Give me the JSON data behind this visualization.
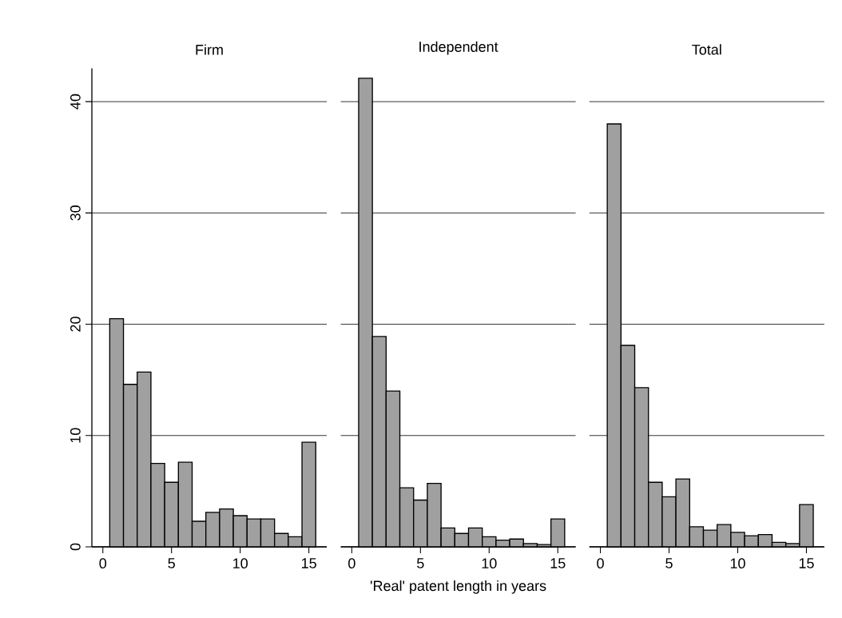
{
  "chart_data": [
    {
      "type": "histogram",
      "title": "Firm",
      "bins": [
        0.5,
        1.5,
        2.5,
        3.5,
        4.5,
        5.5,
        6.5,
        7.5,
        8.5,
        9.5,
        10.5,
        11.5,
        12.5,
        13.5,
        14.5,
        15.5
      ],
      "values": [
        20.5,
        14.6,
        15.7,
        7.5,
        5.8,
        7.6,
        2.3,
        3.1,
        3.4,
        2.8,
        2.5,
        2.5,
        1.2,
        0.9,
        9.4
      ],
      "color": "#a0a0a0",
      "xlim": [
        -0.8,
        16.3
      ],
      "xticks": [
        0,
        5,
        10,
        15
      ],
      "ylim": [
        0,
        43
      ],
      "yticks": [
        0,
        10,
        20,
        30,
        40
      ],
      "grid": "y"
    },
    {
      "type": "histogram",
      "title": "Independent",
      "xlabel": "'Real' patent length in years",
      "bins": [
        0.5,
        1.5,
        2.5,
        3.5,
        4.5,
        5.5,
        6.5,
        7.5,
        8.5,
        9.5,
        10.5,
        11.5,
        12.5,
        13.5,
        14.5,
        15.5
      ],
      "values": [
        42.1,
        18.9,
        14.0,
        5.3,
        4.2,
        5.7,
        1.7,
        1.2,
        1.7,
        0.9,
        0.6,
        0.7,
        0.3,
        0.2,
        2.5
      ],
      "color": "#a0a0a0",
      "xlim": [
        -0.8,
        16.3
      ],
      "xticks": [
        0,
        5,
        10,
        15
      ],
      "yticks": [
        0,
        10,
        20,
        30,
        40
      ],
      "grid": "y",
      "tick_labels": "x"
    },
    {
      "type": "histogram",
      "title": "Total",
      "bins": [
        0.5,
        1.5,
        2.5,
        3.5,
        4.5,
        5.5,
        6.5,
        7.5,
        8.5,
        9.5,
        10.5,
        11.5,
        12.5,
        13.5,
        14.5,
        15.5
      ],
      "values": [
        38.0,
        18.1,
        14.3,
        5.8,
        4.5,
        6.1,
        1.8,
        1.5,
        2.0,
        1.3,
        1.0,
        1.1,
        0.4,
        0.3,
        3.8
      ],
      "color": "#a0a0a0",
      "xlim": [
        -0.8,
        16.3
      ],
      "xticks": [
        0,
        5,
        10,
        15
      ],
      "yticks": [
        0,
        10,
        20,
        30,
        40
      ],
      "grid": "y",
      "tick_labels": "x"
    }
  ]
}
